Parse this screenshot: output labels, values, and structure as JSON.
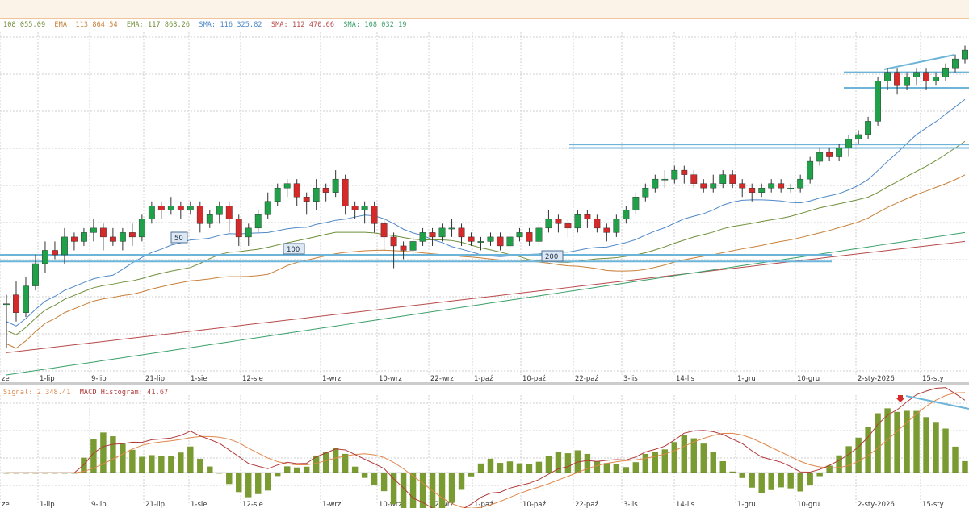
{
  "colors": {
    "up": "#21a04a",
    "down": "#d42a2a",
    "wick": "#333333",
    "ema1": "#c8803a",
    "ema2": "#6f8f3a",
    "sma1": "#4f88c8",
    "sma2": "#b84a4a",
    "sma3": "#3aa06a",
    "hline": "#6cb4d8",
    "grid": "#cfcfcf",
    "macd": "#b23a3a",
    "signal": "#e0874a",
    "hist": "#7a9a32"
  },
  "legend_main": [
    {
      "text": "108 055.09",
      "color": "#6f8f3a"
    },
    {
      "text": "EMA: 113 864.54",
      "color": "#c8803a"
    },
    {
      "text": "EMA: 117 868.26",
      "color": "#6f8f3a"
    },
    {
      "text": "SMA: 116 325.82",
      "color": "#4f88c8"
    },
    {
      "text": "SMA: 112 470.66",
      "color": "#b84a4a"
    },
    {
      "text": "SMA: 108 032.19",
      "color": "#3aa06a"
    }
  ],
  "legend_macd": [
    {
      "text": "Signal: 2 348.41",
      "color": "#e0874a"
    },
    {
      "text": "MACD Histogram: 41.67",
      "color": "#b23a3a"
    }
  ],
  "chart_data": [
    {
      "type": "candlestick",
      "x_tick_labels": [
        "ze",
        "1-lip",
        "9-lip",
        "21-lip",
        "1-sie",
        "12-sie",
        "1-wrz",
        "10-wrz",
        "22-wrz",
        "1-paź",
        "10-paź",
        "22-paź",
        "3-lis",
        "14-lis",
        "1-gru",
        "10-gru",
        "2-sty-2026",
        "15-sty"
      ],
      "ma_labels": [
        "50",
        "100",
        "200"
      ],
      "candles": [
        [
          60,
          60,
          50,
          62
        ],
        [
          62,
          58,
          56,
          65
        ],
        [
          58,
          64,
          57,
          66
        ],
        [
          64,
          69,
          63,
          71
        ],
        [
          69,
          72,
          67,
          74
        ],
        [
          72,
          71,
          70,
          74
        ],
        [
          71,
          75,
          69,
          77
        ],
        [
          75,
          74,
          72,
          76
        ],
        [
          74,
          76,
          73,
          77
        ],
        [
          76,
          77,
          74,
          79
        ],
        [
          77,
          75,
          72,
          78
        ],
        [
          75,
          74,
          73,
          77
        ],
        [
          74,
          76,
          72,
          77
        ],
        [
          76,
          75,
          73,
          78
        ],
        [
          75,
          79,
          74,
          80
        ],
        [
          79,
          82,
          78,
          83
        ],
        [
          82,
          81,
          79,
          83
        ],
        [
          81,
          82,
          80,
          84
        ],
        [
          82,
          81,
          79,
          83
        ],
        [
          81,
          82,
          80,
          83
        ],
        [
          82,
          78,
          76,
          83
        ],
        [
          78,
          80,
          77,
          81
        ],
        [
          80,
          82,
          78,
          83
        ],
        [
          82,
          79,
          76,
          83
        ],
        [
          79,
          75,
          73,
          80
        ],
        [
          75,
          77,
          73,
          78
        ],
        [
          77,
          80,
          76,
          81
        ],
        [
          80,
          83,
          79,
          85
        ],
        [
          83,
          86,
          82,
          87
        ],
        [
          86,
          87,
          84,
          88
        ],
        [
          87,
          84,
          82,
          88
        ],
        [
          84,
          83,
          80,
          85
        ],
        [
          83,
          86,
          81,
          88
        ],
        [
          86,
          85,
          83,
          87
        ],
        [
          85,
          88,
          84,
          90
        ],
        [
          88,
          82,
          80,
          89
        ],
        [
          82,
          81,
          79,
          83
        ],
        [
          81,
          82,
          78,
          83
        ],
        [
          82,
          78,
          76,
          83
        ],
        [
          78,
          75,
          72,
          79
        ],
        [
          75,
          73,
          68,
          76
        ],
        [
          73,
          72,
          70,
          74
        ],
        [
          72,
          74,
          71,
          75
        ],
        [
          74,
          76,
          73,
          77
        ],
        [
          76,
          75,
          73,
          77
        ],
        [
          75,
          77,
          74,
          78
        ],
        [
          77,
          77,
          75,
          79
        ],
        [
          77,
          75,
          73,
          78
        ],
        [
          75,
          74,
          73,
          76
        ],
        [
          74,
          74,
          72,
          75
        ],
        [
          74,
          75,
          73,
          76
        ],
        [
          75,
          73,
          72,
          76
        ],
        [
          73,
          75,
          72,
          76
        ],
        [
          75,
          76,
          74,
          77
        ],
        [
          76,
          74,
          73,
          77
        ],
        [
          74,
          77,
          73,
          78
        ],
        [
          77,
          79,
          76,
          81
        ],
        [
          79,
          78,
          76,
          80
        ],
        [
          78,
          77,
          75,
          79
        ],
        [
          77,
          80,
          76,
          81
        ],
        [
          80,
          79,
          77,
          81
        ],
        [
          79,
          77,
          76,
          80
        ],
        [
          77,
          76,
          74,
          78
        ],
        [
          76,
          79,
          75,
          80
        ],
        [
          79,
          81,
          78,
          82
        ],
        [
          81,
          84,
          80,
          85
        ],
        [
          84,
          86,
          83,
          87
        ],
        [
          86,
          88,
          85,
          89
        ],
        [
          88,
          88,
          86,
          90
        ],
        [
          88,
          90,
          87,
          91
        ],
        [
          90,
          89,
          87,
          91
        ],
        [
          89,
          87,
          86,
          90
        ],
        [
          87,
          86,
          85,
          88
        ],
        [
          86,
          87,
          85,
          89
        ],
        [
          87,
          89,
          86,
          90
        ],
        [
          89,
          87,
          86,
          90
        ],
        [
          87,
          86,
          84,
          88
        ],
        [
          86,
          85,
          83,
          87
        ],
        [
          85,
          86,
          84,
          87
        ],
        [
          86,
          87,
          85,
          88
        ],
        [
          87,
          86,
          85,
          88
        ],
        [
          86,
          86,
          85,
          87
        ],
        [
          86,
          88,
          85,
          89
        ],
        [
          88,
          92,
          87,
          93
        ],
        [
          92,
          94,
          91,
          95
        ],
        [
          94,
          93,
          92,
          95
        ],
        [
          93,
          95,
          92,
          96
        ],
        [
          95,
          97,
          93,
          98
        ],
        [
          97,
          98,
          96,
          99
        ],
        [
          98,
          101,
          97,
          102
        ],
        [
          101,
          110,
          100,
          111
        ],
        [
          110,
          112,
          108,
          113
        ],
        [
          112,
          109,
          107,
          113
        ],
        [
          109,
          111,
          108,
          112
        ],
        [
          111,
          112,
          109,
          113
        ],
        [
          112,
          110,
          108,
          113
        ],
        [
          110,
          111,
          109,
          112
        ],
        [
          111,
          113,
          110,
          114
        ],
        [
          113,
          115,
          112,
          116
        ],
        [
          115,
          117,
          114,
          118
        ]
      ],
      "hlines": [
        95,
        95.8,
        71,
        69.5,
        112,
        108.5
      ],
      "y_range": [
        44,
        121
      ]
    },
    {
      "type": "line",
      "title": "MACD",
      "series_names": [
        "Signal",
        "MACD Histogram"
      ],
      "y_range": [
        -15,
        40
      ]
    }
  ]
}
